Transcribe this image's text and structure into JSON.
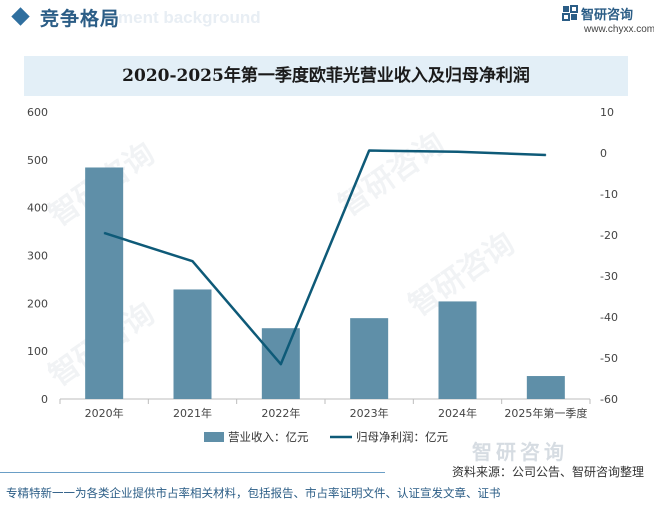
{
  "header": {
    "section_title": "竞争格局",
    "bg_text": "ment background",
    "brand_name": "智研咨询",
    "brand_url": "www.chyxx.com"
  },
  "colors": {
    "bar": "#5f8fa8",
    "line": "#0e5a78",
    "title_band": "#e3eff7",
    "accent": "#2b5d86"
  },
  "chart_data": {
    "type": "bar",
    "title": "2020-2025年第一季度欧菲光营业收入及归母净利润",
    "categories": [
      "2020年",
      "2021年",
      "2022年",
      "2023年",
      "2024年",
      "2025年第一季度"
    ],
    "series": [
      {
        "name": "营业收入：亿元",
        "type": "bar",
        "axis": "left",
        "values": [
          484,
          229,
          148,
          169,
          204,
          48
        ]
      },
      {
        "name": "归母净利润：亿元",
        "type": "line",
        "axis": "right",
        "values": [
          -19.5,
          -26.4,
          -51.5,
          0.6,
          0.3,
          -0.5
        ]
      }
    ],
    "y_left": {
      "min": 0,
      "max": 600,
      "step": 100,
      "ticks": [
        "0",
        "100",
        "200",
        "300",
        "400",
        "500",
        "600"
      ]
    },
    "y_right": {
      "min": -60,
      "max": 10,
      "step": 10,
      "ticks": [
        "-60",
        "-50",
        "-40",
        "-30",
        "-20",
        "-10",
        "0",
        "10"
      ]
    },
    "legend_position": "bottom"
  },
  "footer": {
    "source": "资料来源：公司公告、智研咨询整理",
    "note": "专精特新一一为各类企业提供市占率相关材料，包括报告、市占率证明文件、认证宣发文章、证书",
    "brand_watermark": "智研咨询"
  }
}
